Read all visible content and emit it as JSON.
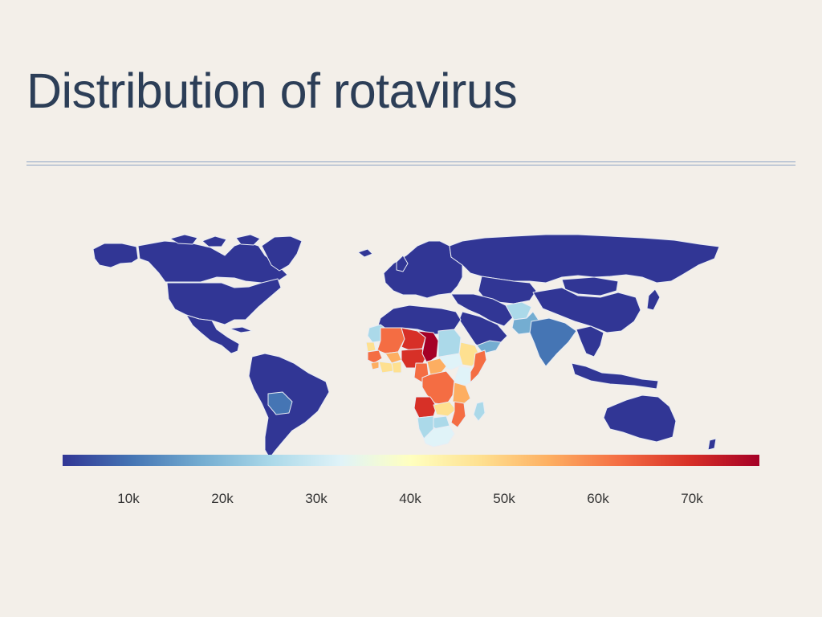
{
  "title": "Distribution of rotavirus",
  "map": {
    "type": "choropleth-world",
    "default_color": "#313695",
    "border_color": "#e9edf4",
    "highlighted_regions": [
      {
        "name": "Chad",
        "color": "#a50026"
      },
      {
        "name": "Niger",
        "color": "#d73027"
      },
      {
        "name": "Mali",
        "color": "#f46d43"
      },
      {
        "name": "Nigeria",
        "color": "#d73027"
      },
      {
        "name": "Burkina Faso",
        "color": "#fdae61"
      },
      {
        "name": "Guinea",
        "color": "#f46d43"
      },
      {
        "name": "Sierra Leone",
        "color": "#fdae61"
      },
      {
        "name": "Ivory Coast",
        "color": "#fee090"
      },
      {
        "name": "Ghana",
        "color": "#fee090"
      },
      {
        "name": "Mauritania",
        "color": "#abd9e9"
      },
      {
        "name": "Senegal",
        "color": "#fee090"
      },
      {
        "name": "Cameroon",
        "color": "#f46d43"
      },
      {
        "name": "Central African Republic",
        "color": "#fdae61"
      },
      {
        "name": "Sudan",
        "color": "#abd9e9"
      },
      {
        "name": "South Sudan",
        "color": "#e0f3f8"
      },
      {
        "name": "Ethiopia",
        "color": "#fee090"
      },
      {
        "name": "Somalia",
        "color": "#f46d43"
      },
      {
        "name": "DR Congo",
        "color": "#f46d43"
      },
      {
        "name": "Tanzania",
        "color": "#fdae61"
      },
      {
        "name": "Kenya",
        "color": "#e0f3f8"
      },
      {
        "name": "Angola",
        "color": "#d73027"
      },
      {
        "name": "Zambia",
        "color": "#fee090"
      },
      {
        "name": "Mozambique",
        "color": "#f46d43"
      },
      {
        "name": "Namibia",
        "color": "#abd9e9"
      },
      {
        "name": "Botswana",
        "color": "#abd9e9"
      },
      {
        "name": "South Africa",
        "color": "#e0f3f8"
      },
      {
        "name": "Madagascar",
        "color": "#abd9e9"
      },
      {
        "name": "Afghanistan",
        "color": "#abd9e9"
      },
      {
        "name": "Pakistan",
        "color": "#74add1"
      },
      {
        "name": "India",
        "color": "#4575b4"
      },
      {
        "name": "Yemen",
        "color": "#74add1"
      },
      {
        "name": "Bolivia",
        "color": "#4575b4"
      }
    ]
  },
  "colorbar": {
    "colors": [
      "#313695",
      "#4575b4",
      "#74add1",
      "#abd9e9",
      "#e0f3f8",
      "#ffffbf",
      "#fee090",
      "#fdae61",
      "#f46d43",
      "#d73027",
      "#a50026"
    ],
    "ticks": [
      "10k",
      "20k",
      "30k",
      "40k",
      "50k",
      "60k",
      "70k"
    ]
  }
}
